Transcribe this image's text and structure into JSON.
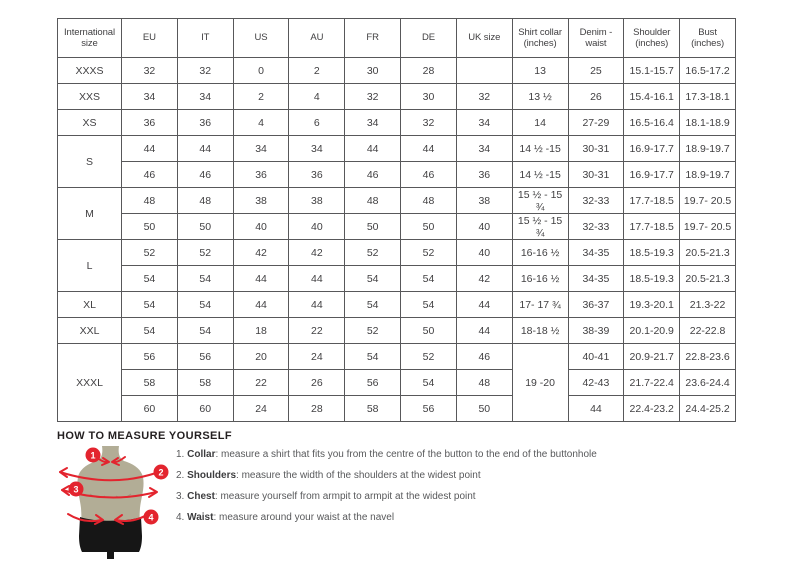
{
  "colors": {
    "accent": "#e3242e",
    "body_olive": "#b2ad96",
    "shorts_black": "#161616",
    "border_gray": "#58585a",
    "text_gray": "#414042",
    "heading_black": "#231f20"
  },
  "table": {
    "headers": [
      "International size",
      "EU",
      "IT",
      "US",
      "AU",
      "FR",
      "DE",
      "UK size",
      "Shirt collar (inches)",
      "Denim - waist",
      "Shoulder (inches)",
      "Bust (inches)"
    ],
    "groups": [
      {
        "size": "XXXS",
        "rows": [
          [
            "32",
            "32",
            "0",
            "2",
            "30",
            "28",
            "",
            "13",
            "25",
            "15.1-15.7",
            "16.5-17.2"
          ]
        ]
      },
      {
        "size": "XXS",
        "rows": [
          [
            "34",
            "34",
            "2",
            "4",
            "32",
            "30",
            "32",
            "13 ½",
            "26",
            "15.4-16.1",
            "17.3-18.1"
          ]
        ]
      },
      {
        "size": "XS",
        "rows": [
          [
            "36",
            "36",
            "4",
            "6",
            "34",
            "32",
            "34",
            "14",
            "27-29",
            "16.5-16.4",
            "18.1-18.9"
          ]
        ]
      },
      {
        "size": "S",
        "rows": [
          [
            "44",
            "44",
            "34",
            "34",
            "44",
            "44",
            "34",
            "14 ½ -15",
            "30-31",
            "16.9-17.7",
            "18.9-19.7"
          ],
          [
            "46",
            "46",
            "36",
            "36",
            "46",
            "46",
            "36",
            "14 ½ -15",
            "30-31",
            "16.9-17.7",
            "18.9-19.7"
          ]
        ]
      },
      {
        "size": "M",
        "rows": [
          [
            "48",
            "48",
            "38",
            "38",
            "48",
            "48",
            "38",
            "15 ½ - 15 ¾",
            "32-33",
            "17.7-18.5",
            "19.7- 20.5"
          ],
          [
            "50",
            "50",
            "40",
            "40",
            "50",
            "50",
            "40",
            "15 ½ - 15 ¾",
            "32-33",
            "17.7-18.5",
            "19.7- 20.5"
          ]
        ]
      },
      {
        "size": "L",
        "rows": [
          [
            "52",
            "52",
            "42",
            "42",
            "52",
            "52",
            "40",
            "16-16 ½",
            "34-35",
            "18.5-19.3",
            "20.5-21.3"
          ],
          [
            "54",
            "54",
            "44",
            "44",
            "54",
            "54",
            "42",
            "16-16 ½",
            "34-35",
            "18.5-19.3",
            "20.5-21.3"
          ]
        ]
      },
      {
        "size": "XL",
        "rows": [
          [
            "54",
            "54",
            "44",
            "44",
            "54",
            "54",
            "44",
            "17- 17 ¾",
            "36-37",
            "19.3-20.1",
            "21.3-22"
          ]
        ]
      },
      {
        "size": "XXL",
        "rows": [
          [
            "54",
            "54",
            "18",
            "22",
            "52",
            "50",
            "44",
            "18-18 ½",
            "38-39",
            "20.1-20.9",
            "22-22.8"
          ]
        ]
      },
      {
        "size": "XXXL",
        "merged_collar": "19 -20",
        "rows": [
          [
            "56",
            "56",
            "20",
            "24",
            "54",
            "52",
            "46",
            "40-41",
            "20.9-21.7",
            "22.8-23.6"
          ],
          [
            "58",
            "58",
            "22",
            "26",
            "56",
            "54",
            "48",
            "42-43",
            "21.7-22.4",
            "23.6-24.4"
          ],
          [
            "60",
            "60",
            "24",
            "28",
            "58",
            "56",
            "50",
            "44",
            "22.4-23.2",
            "24.4-25.2"
          ]
        ]
      }
    ]
  },
  "measure": {
    "heading": "HOW TO MEASURE YOURSELF",
    "items": [
      {
        "badge": "1",
        "num": "1.",
        "label": "Collar",
        "text": ": measure a shirt that fits you from the centre of the button to the end of the buttonhole"
      },
      {
        "badge": "2",
        "num": "2.",
        "label": "Shoulders",
        "text": ": measure the width of the shoulders at the widest point"
      },
      {
        "badge": "3",
        "num": "3.",
        "label": "Chest",
        "text": ": measure yourself from armpit to armpit at the widest point"
      },
      {
        "badge": "4",
        "num": "4.",
        "label": "Waist",
        "text": ": measure around your waist at the navel"
      }
    ]
  }
}
